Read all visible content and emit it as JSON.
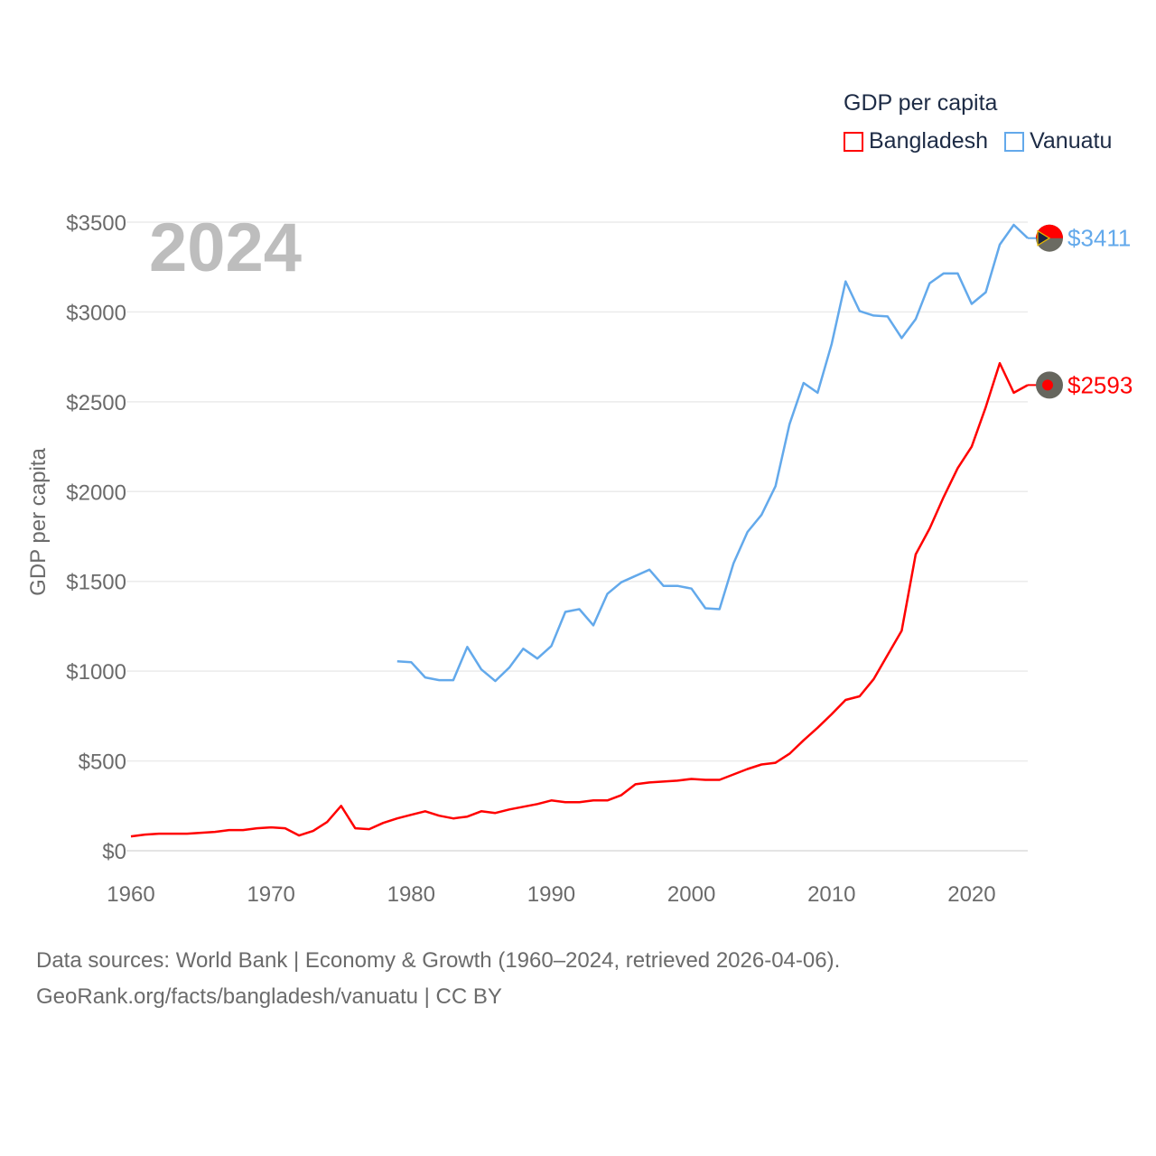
{
  "chart_data": {
    "type": "line",
    "title": "GDP per capita",
    "ylabel": "GDP per capita",
    "xlabel": "",
    "year_label": "2024",
    "xlim": [
      1960,
      2024
    ],
    "ylim": [
      0,
      3500
    ],
    "x_ticks": [
      "1960",
      "1970",
      "1980",
      "1990",
      "2000",
      "2010",
      "2020"
    ],
    "y_ticks": [
      "$0",
      "$500",
      "$1000",
      "$1500",
      "$2000",
      "$2500",
      "$3000",
      "$3500"
    ],
    "grid": true,
    "legend_position": "top-right",
    "series": [
      {
        "name": "Bangladesh",
        "color": "#ff0000",
        "end_label": "$2593",
        "start_year": 1960,
        "values": [
          80,
          90,
          95,
          95,
          95,
          100,
          105,
          115,
          115,
          125,
          130,
          125,
          85,
          110,
          160,
          250,
          125,
          120,
          155,
          180,
          200,
          220,
          195,
          180,
          190,
          220,
          210,
          230,
          245,
          260,
          280,
          270,
          270,
          280,
          280,
          310,
          370,
          380,
          385,
          390,
          400,
          395,
          395,
          425,
          455,
          480,
          490,
          540,
          615,
          685,
          760,
          840,
          860,
          955,
          1090,
          1225,
          1650,
          1795,
          1970,
          2130,
          2250,
          2470,
          2715,
          2550,
          2593
        ]
      },
      {
        "name": "Vanuatu",
        "color": "#63a9eb",
        "end_label": "$3411",
        "start_year": 1979,
        "values": [
          1055,
          1050,
          965,
          950,
          950,
          1135,
          1010,
          945,
          1020,
          1125,
          1070,
          1140,
          1330,
          1345,
          1255,
          1430,
          1495,
          1530,
          1565,
          1475,
          1475,
          1460,
          1350,
          1345,
          1600,
          1775,
          1870,
          2030,
          2375,
          2605,
          2550,
          2820,
          3170,
          3005,
          2980,
          2975,
          2855,
          2960,
          3160,
          3215,
          3215,
          3045,
          3110,
          3375,
          3485,
          3411
        ]
      }
    ]
  },
  "footer": {
    "line1": "Data sources: World Bank | Economy & Growth (1960–2024, retrieved 2026-04-06).",
    "line2": "GeoRank.org/facts/bangladesh/vanuatu | CC BY"
  }
}
